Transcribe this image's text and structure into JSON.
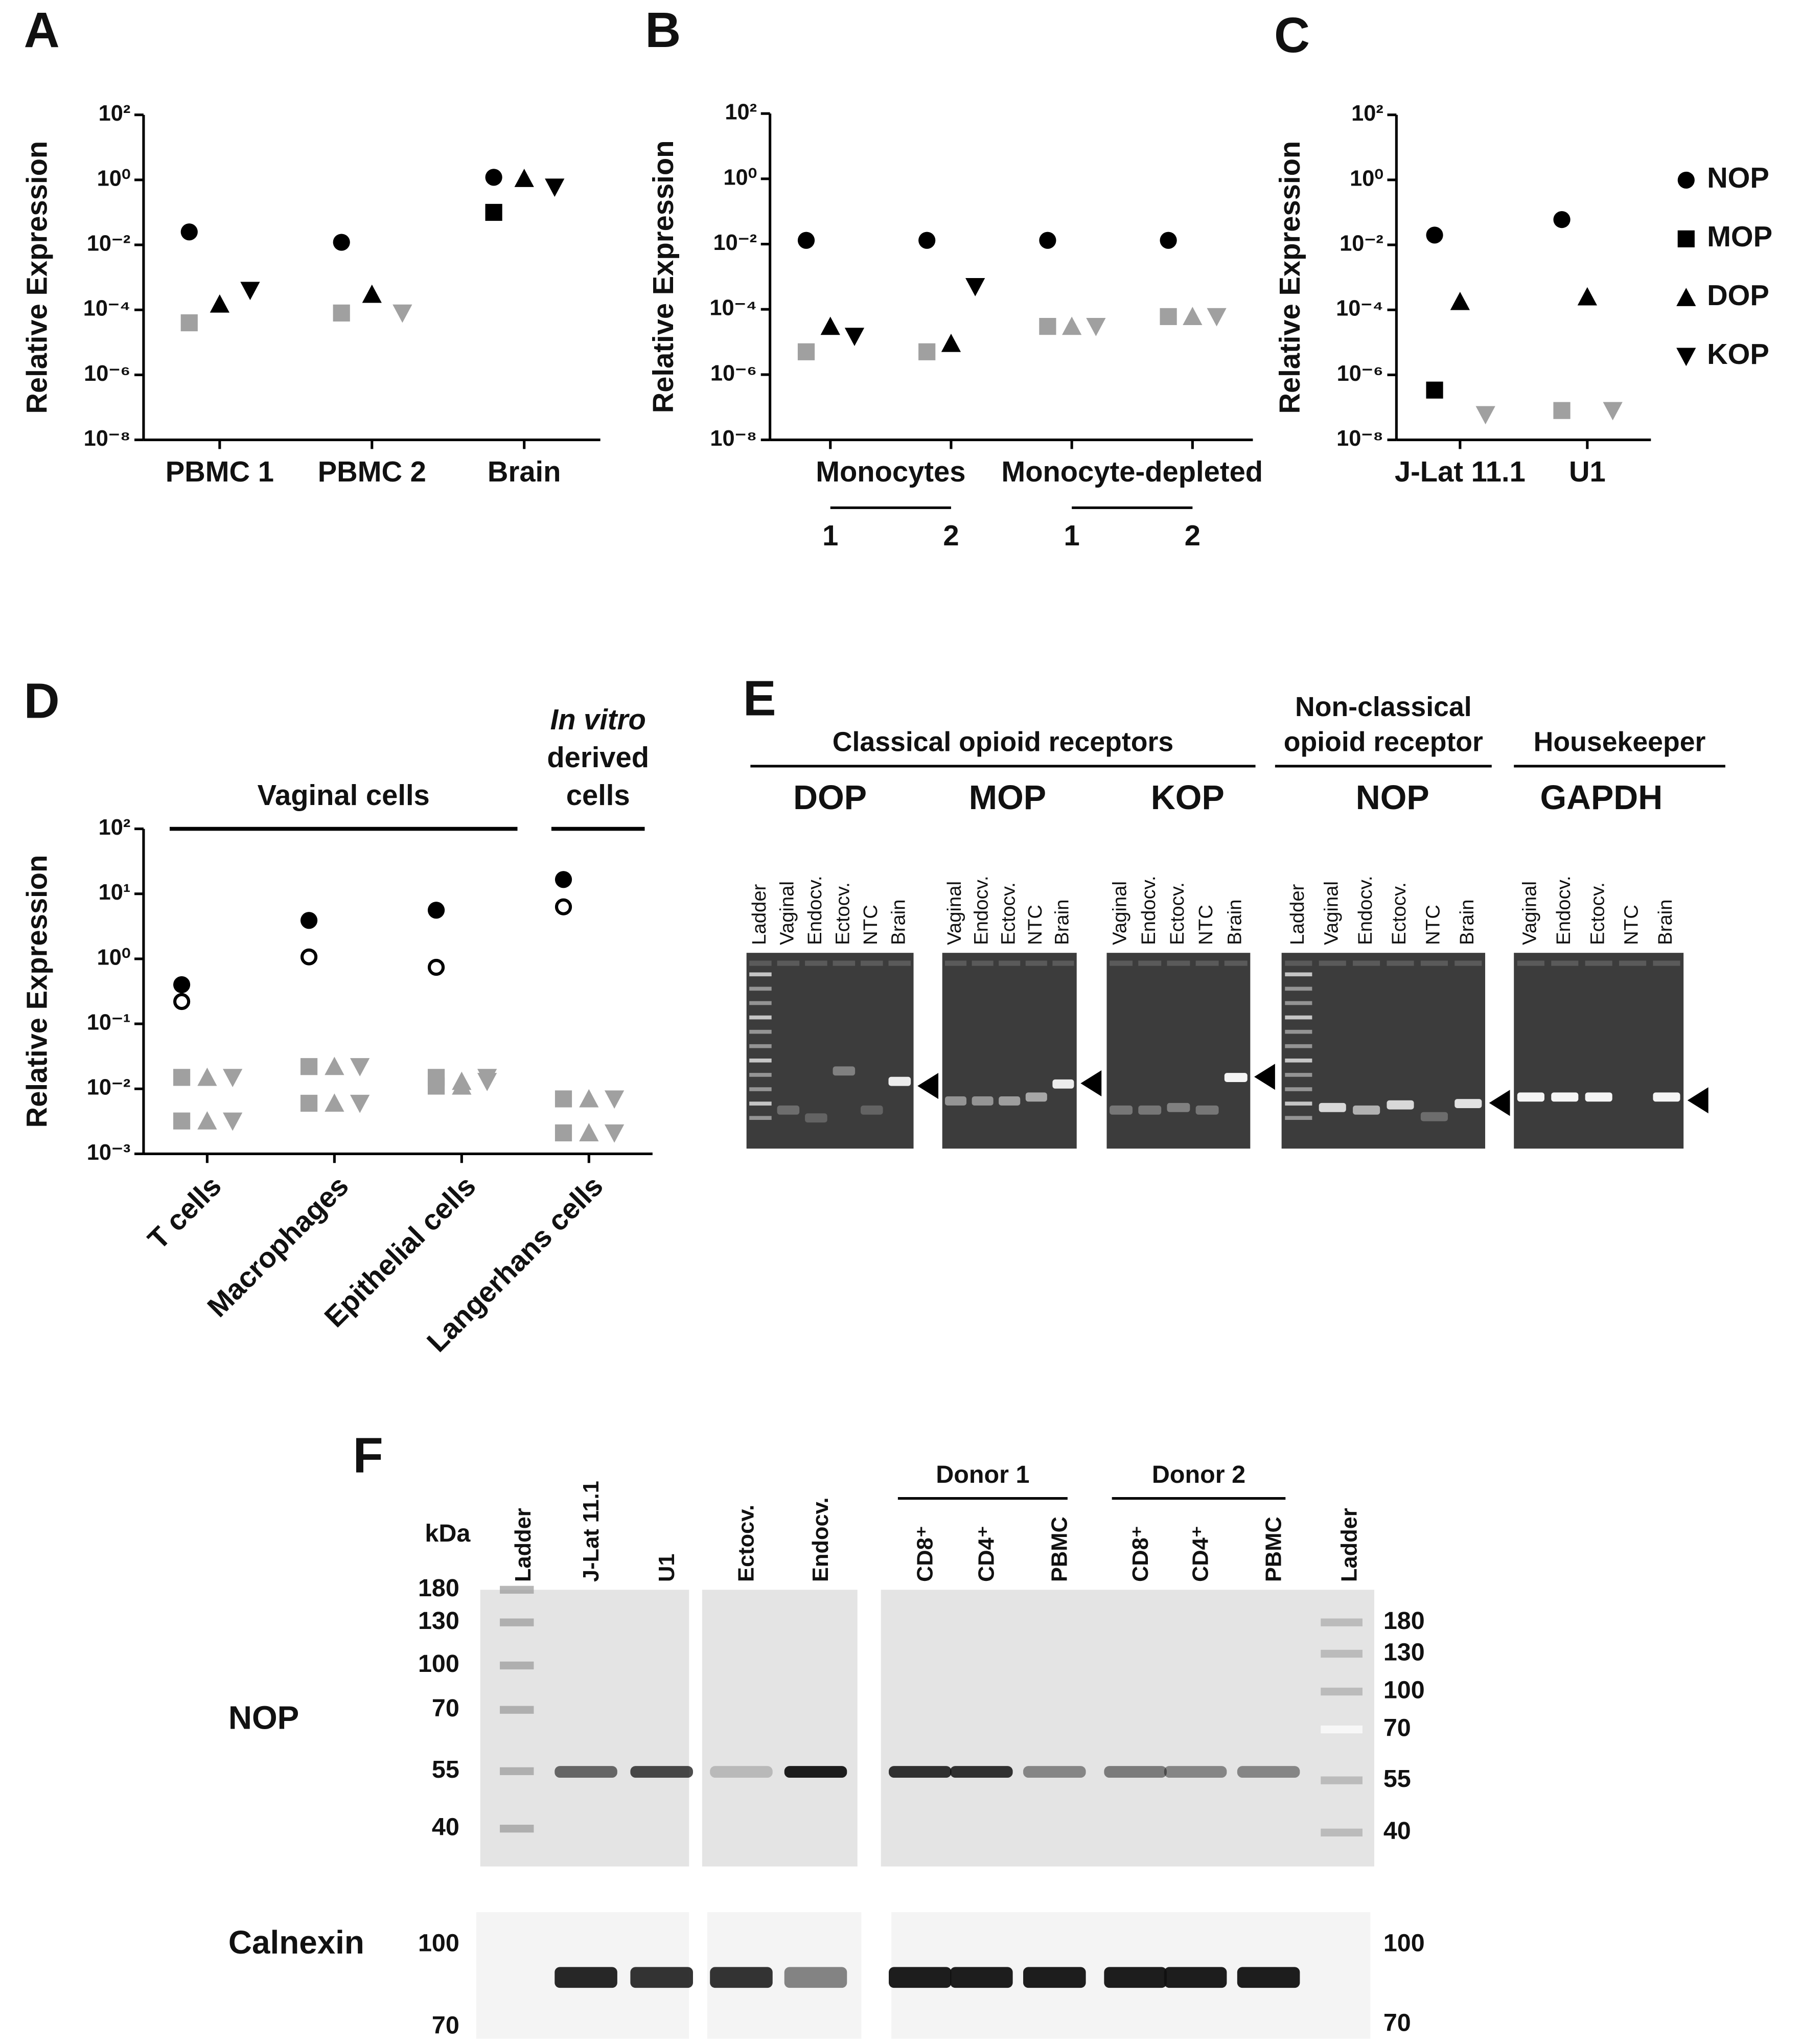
{
  "chart_data": [
    {
      "type": "dot",
      "panel": "A",
      "ylabel": "Relative Expression",
      "log_y": true,
      "ylim": [
        1e-08,
        100
      ],
      "yticks": [
        {
          "value": 1e-08,
          "label": "10⁻⁸"
        },
        {
          "value": 1e-06,
          "label": "10⁻⁶"
        },
        {
          "value": 0.0001,
          "label": "10⁻⁴"
        },
        {
          "value": 0.01,
          "label": "10⁻²"
        },
        {
          "value": 1,
          "label": "10⁰"
        },
        {
          "value": 100,
          "label": "10²"
        }
      ],
      "categories": [
        "PBMC 1",
        "PBMC 2",
        "Brain"
      ],
      "series": [
        {
          "name": "NOP",
          "marker": "circle",
          "colors": [
            "#000000",
            "#000000",
            "#000000"
          ],
          "values": [
            0.025,
            0.012,
            1.2
          ]
        },
        {
          "name": "MOP",
          "marker": "square",
          "colors": [
            "#a0a0a0",
            "#a0a0a0",
            "#000000"
          ],
          "values": [
            4e-05,
            8e-05,
            0.1
          ]
        },
        {
          "name": "DOP",
          "marker": "triangle-up",
          "colors": [
            "#000000",
            "#000000",
            "#000000"
          ],
          "values": [
            0.00015,
            0.0003,
            1.1
          ]
        },
        {
          "name": "KOP",
          "marker": "triangle-down",
          "colors": [
            "#000000",
            "#a0a0a0",
            "#000000"
          ],
          "values": [
            0.0004,
            8e-05,
            0.6
          ]
        }
      ]
    },
    {
      "type": "dot",
      "panel": "B",
      "ylabel": "Relative Expression",
      "log_y": true,
      "ylim": [
        1e-08,
        100
      ],
      "yticks": [
        {
          "value": 1e-08,
          "label": "10⁻⁸"
        },
        {
          "value": 1e-06,
          "label": "10⁻⁶"
        },
        {
          "value": 0.0001,
          "label": "10⁻⁴"
        },
        {
          "value": 0.01,
          "label": "10⁻²"
        },
        {
          "value": 1,
          "label": "10⁰"
        },
        {
          "value": 100,
          "label": "10²"
        }
      ],
      "group_labels": [
        [
          "Monocytes"
        ],
        [
          "Monocyte-depleted"
        ]
      ],
      "categories": [
        "1",
        "2",
        "1",
        "2"
      ],
      "series": [
        {
          "name": "NOP",
          "marker": "circle",
          "colors": [
            "#000000",
            "#000000",
            "#000000",
            "#000000"
          ],
          "values": [
            0.013,
            0.013,
            0.013,
            0.013
          ]
        },
        {
          "name": "MOP",
          "marker": "square",
          "colors": [
            "#a0a0a0",
            "#a0a0a0",
            "#a0a0a0",
            "#a0a0a0"
          ],
          "values": [
            5e-06,
            5e-06,
            3e-05,
            6e-05
          ]
        },
        {
          "name": "DOP",
          "marker": "triangle-up",
          "colors": [
            "#000000",
            "#000000",
            "#a0a0a0",
            "#a0a0a0"
          ],
          "values": [
            3e-05,
            9e-06,
            3e-05,
            6e-05
          ]
        },
        {
          "name": "KOP",
          "marker": "triangle-down",
          "colors": [
            "#000000",
            "#000000",
            "#a0a0a0",
            "#a0a0a0"
          ],
          "values": [
            1.5e-05,
            0.0005,
            3e-05,
            6e-05
          ]
        }
      ]
    },
    {
      "type": "dot",
      "panel": "C",
      "ylabel": "Relative Expression",
      "log_y": true,
      "legend": "right",
      "ylim": [
        1e-08,
        100
      ],
      "yticks": [
        {
          "value": 1e-08,
          "label": "10⁻⁸"
        },
        {
          "value": 1e-06,
          "label": "10⁻⁶"
        },
        {
          "value": 0.0001,
          "label": "10⁻⁴"
        },
        {
          "value": 0.01,
          "label": "10⁻²"
        },
        {
          "value": 1,
          "label": "10⁰"
        },
        {
          "value": 100,
          "label": "10²"
        }
      ],
      "categories": [
        "J-Lat 11.1",
        "U1"
      ],
      "series": [
        {
          "name": "NOP",
          "marker": "circle",
          "colors": [
            "#000000",
            "#000000"
          ],
          "values": [
            0.02,
            0.06
          ]
        },
        {
          "name": "MOP",
          "marker": "square",
          "colors": [
            "#000000",
            "#a0a0a0"
          ],
          "values": [
            3.4e-07,
            8e-08
          ]
        },
        {
          "name": "DOP",
          "marker": "triangle-up",
          "colors": [
            "#000000",
            "#000000"
          ],
          "values": [
            0.00018,
            0.00025
          ]
        },
        {
          "name": "KOP",
          "marker": "triangle-down",
          "colors": [
            "#a0a0a0",
            "#a0a0a0"
          ],
          "values": [
            6e-08,
            8e-08
          ]
        }
      ]
    },
    {
      "type": "dot",
      "panel": "D",
      "ylabel": "Relative Expression",
      "log_y": true,
      "ylim": [
        0.001,
        100
      ],
      "yticks": [
        {
          "value": 0.001,
          "label": "10⁻³"
        },
        {
          "value": 0.01,
          "label": "10⁻²"
        },
        {
          "value": 0.1,
          "label": "10⁻¹"
        },
        {
          "value": 1,
          "label": "10⁰"
        },
        {
          "value": 10,
          "label": "10¹"
        },
        {
          "value": 100,
          "label": "10²"
        }
      ],
      "group_labels": [
        [
          "Vaginal cells"
        ],
        [
          "In vitro",
          "derived",
          "cells"
        ]
      ],
      "categories": [
        "T cells",
        "Macrophages",
        "Epithelial cells",
        "Langerhans cells"
      ],
      "series": [
        {
          "marker": "circle",
          "color": "#000000",
          "values": [
            0.4,
            3.9,
            5.6,
            16.6
          ]
        },
        {
          "marker": "circle-open",
          "color": "#000000",
          "values": [
            0.22,
            1.07,
            0.74,
            6.3
          ]
        },
        {
          "marker": "square",
          "color": "#a0a0a0",
          "values": [
            0.015,
            0.022,
            0.015,
            0.007
          ]
        },
        {
          "marker": "square",
          "color": "#a0a0a0",
          "values": [
            0.0032,
            0.006,
            0.011,
            0.0021
          ]
        },
        {
          "marker": "triangle-up",
          "color": "#a0a0a0",
          "values": [
            0.015,
            0.022,
            0.013,
            0.007
          ]
        },
        {
          "marker": "triangle-up",
          "color": "#a0a0a0",
          "values": [
            0.0032,
            0.006,
            0.011,
            0.0021
          ]
        },
        {
          "marker": "triangle-down",
          "color": "#a0a0a0",
          "values": [
            0.015,
            0.022,
            0.015,
            0.007
          ]
        },
        {
          "marker": "triangle-down",
          "color": "#a0a0a0",
          "values": [
            0.0032,
            0.006,
            0.013,
            0.0021
          ]
        }
      ]
    }
  ],
  "panel_e": {
    "letter": "E",
    "headers": [
      [
        "Classical opioid receptors"
      ],
      [
        "Non-classical",
        "opioid receptor"
      ],
      [
        "Housekeeper"
      ]
    ],
    "gels": [
      {
        "name": "DOP",
        "lanes": [
          "Ladder",
          "Vaginal",
          "Endocv.",
          "Ectocv.",
          "NTC",
          "Brain"
        ]
      },
      {
        "name": "MOP",
        "lanes": [
          "Vaginal",
          "Endocv.",
          "Ectocv.",
          "NTC",
          "Brain"
        ]
      },
      {
        "name": "KOP",
        "lanes": [
          "Vaginal",
          "Endocv.",
          "Ectocv.",
          "NTC",
          "Brain"
        ]
      },
      {
        "name": "NOP",
        "lanes": [
          "Ladder",
          "Vaginal",
          "Endocv.",
          "Ectocv.",
          "NTC",
          "Brain"
        ]
      },
      {
        "name": "GAPDH",
        "lanes": [
          "Vaginal",
          "Endocv.",
          "Ectocv.",
          "NTC",
          "Brain"
        ]
      }
    ]
  },
  "panel_f": {
    "letter": "F",
    "unit": "kDa",
    "lanes": [
      "Ladder",
      "J-Lat 11.1",
      "U1",
      "Ectocv.",
      "Endocv.",
      "CD8⁺",
      "CD4⁺",
      "PBMC",
      "CD8⁺",
      "CD4⁺",
      "PBMC",
      "Ladder"
    ],
    "donors": [
      "Donor 1",
      "Donor 2"
    ],
    "rows": [
      {
        "name": "NOP",
        "markers_left": [
          180,
          130,
          100,
          70,
          55,
          40
        ],
        "markers_right": [
          180,
          130,
          100,
          70,
          55,
          40
        ]
      },
      {
        "name": "Calnexin",
        "markers_left": [
          100,
          70
        ],
        "markers_right": [
          100,
          70
        ]
      }
    ]
  }
}
